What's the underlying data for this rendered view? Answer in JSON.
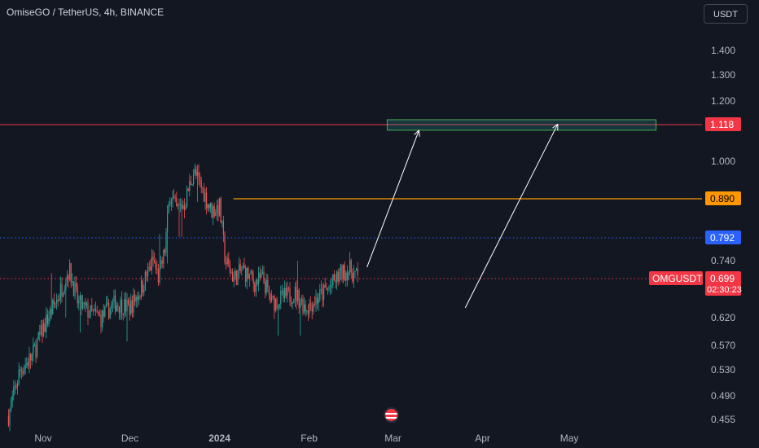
{
  "header": {
    "title": "OmiseGO / TetherUS, 4h, BINANCE",
    "currency": "USDT"
  },
  "colors": {
    "background": "#131722",
    "up": "#26a69a",
    "down": "#ef5350",
    "resistance": "#f23645",
    "orange": "#ff9800",
    "blue": "#2962ff",
    "current": "#f23645",
    "zone": "#26a69a"
  },
  "icons": {
    "event": "us-flag-icon"
  },
  "chart_data": {
    "type": "candlestick",
    "symbol": "OMGUSDT",
    "y_ticks": [
      "1.400",
      "1.300",
      "1.200",
      "1.000",
      "0.740",
      "0.620",
      "0.570",
      "0.530",
      "0.490",
      "0.455"
    ],
    "x_ticks": [
      "Nov",
      "Dec",
      "2024",
      "Feb",
      "Mar",
      "Apr",
      "May"
    ],
    "levels": [
      {
        "id": "resistance",
        "value": 1.118,
        "label": "1.118",
        "style": "solid"
      },
      {
        "id": "orange",
        "value": 0.89,
        "label": "0.890",
        "style": "solid"
      },
      {
        "id": "blue",
        "value": 0.792,
        "label": "0.792",
        "style": "dotted"
      },
      {
        "id": "current",
        "value": 0.699,
        "label": "0.699",
        "style": "dotted"
      }
    ],
    "last_price": {
      "symbol": "OMGUSDT",
      "price": "0.699",
      "countdown": "02:30:23"
    },
    "target_zone": {
      "x_start": "2024-02-28",
      "x_end": "2024-05-31",
      "y_low": 1.1,
      "y_high": 1.135
    },
    "arrows": [
      {
        "from": [
          "2024-02-21",
          0.725
        ],
        "to": [
          "2024-03-10",
          1.1
        ]
      },
      {
        "from": [
          "2024-03-26",
          0.64
        ],
        "to": [
          "2024-04-27",
          1.12
        ]
      }
    ],
    "close_path": [
      [
        "2023-10-20",
        0.46
      ],
      [
        "2023-10-24",
        0.53
      ],
      [
        "2023-10-28",
        0.55
      ],
      [
        "2023-11-01",
        0.6
      ],
      [
        "2023-11-06",
        0.66
      ],
      [
        "2023-11-10",
        0.72
      ],
      [
        "2023-11-13",
        0.65
      ],
      [
        "2023-11-17",
        0.63
      ],
      [
        "2023-11-21",
        0.62
      ],
      [
        "2023-11-26",
        0.65
      ],
      [
        "2023-12-01",
        0.64
      ],
      [
        "2023-12-05",
        0.68
      ],
      [
        "2023-12-09",
        0.74
      ],
      [
        "2023-12-11",
        0.7
      ],
      [
        "2023-12-13",
        0.76
      ],
      [
        "2023-12-15",
        0.91
      ],
      [
        "2023-12-17",
        0.86
      ],
      [
        "2023-12-20",
        0.88
      ],
      [
        "2023-12-23",
        0.97
      ],
      [
        "2023-12-26",
        0.92
      ],
      [
        "2023-12-29",
        0.86
      ],
      [
        "2024-01-01",
        0.87
      ],
      [
        "2024-01-03",
        0.74
      ],
      [
        "2024-01-06",
        0.7
      ],
      [
        "2024-01-09",
        0.72
      ],
      [
        "2024-01-13",
        0.69
      ],
      [
        "2024-01-16",
        0.7
      ],
      [
        "2024-01-19",
        0.65
      ],
      [
        "2024-01-23",
        0.66
      ],
      [
        "2024-01-27",
        0.67
      ],
      [
        "2024-01-31",
        0.64
      ],
      [
        "2024-02-04",
        0.66
      ],
      [
        "2024-02-08",
        0.68
      ],
      [
        "2024-02-12",
        0.71
      ],
      [
        "2024-02-15",
        0.72
      ],
      [
        "2024-02-18",
        0.7
      ]
    ]
  }
}
